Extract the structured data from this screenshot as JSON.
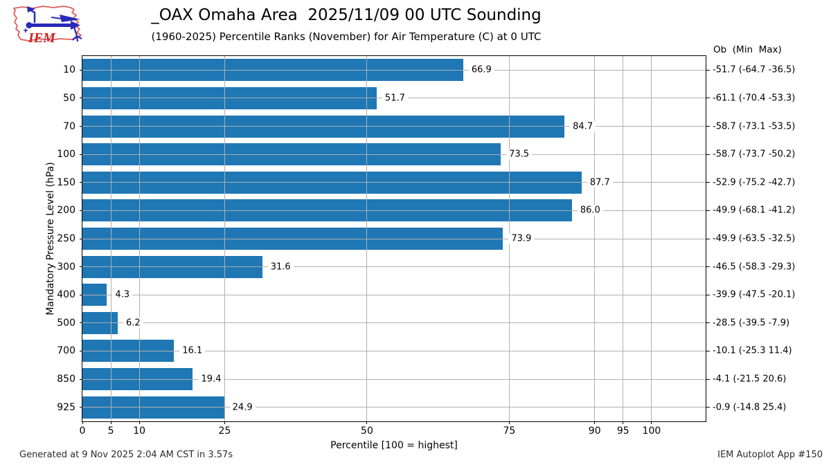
{
  "header": {
    "title": "_OAX Omaha Area  2025/11/09 00 UTC Sounding",
    "subtitle": "(1960-2025) Percentile Ranks (November) for Air Temperature (C) at 0 UTC",
    "logo_text": "IEM"
  },
  "chart_data": {
    "type": "bar",
    "orientation": "horizontal",
    "title": "_OAX Omaha Area  2025/11/09 00 UTC Sounding",
    "subtitle": "(1960-2025) Percentile Ranks (November) for Air Temperature (C) at 0 UTC",
    "xlabel": "Percentile [100 = highest]",
    "ylabel": "Mandatory Pressure Level (hPa)",
    "right_column_header": "Ob  (Min  Max)",
    "x_ticks": [
      0,
      5,
      10,
      25,
      50,
      75,
      90,
      95,
      100
    ],
    "xlim": [
      0,
      109.5
    ],
    "grid": true,
    "legend": "none",
    "bar_color": "#1f77b4",
    "grid_color": "#b0b0b0",
    "categories": [
      "10",
      "50",
      "70",
      "100",
      "150",
      "200",
      "250",
      "300",
      "400",
      "500",
      "700",
      "850",
      "925"
    ],
    "values": [
      66.9,
      51.7,
      84.7,
      73.5,
      87.7,
      86.0,
      73.9,
      31.6,
      4.3,
      6.2,
      16.1,
      19.4,
      24.9
    ],
    "ob_min_max": [
      "-51.7 (-64.7 -36.5)",
      "-61.1 (-70.4 -53.3)",
      "-58.7 (-73.1 -53.5)",
      "-58.7 (-73.7 -50.2)",
      "-52.9 (-75.2 -42.7)",
      "-49.9 (-68.1 -41.2)",
      "-49.9 (-63.5 -32.5)",
      "-46.5 (-58.3 -29.3)",
      "-39.9 (-47.5 -20.1)",
      "-28.5 (-39.5 -7.9)",
      "-10.1 (-25.3 11.4)",
      "-4.1 (-21.5 20.6)",
      "-0.9 (-14.8 25.4)"
    ]
  },
  "footer": {
    "left": "Generated at 9 Nov 2025 2:04 AM CST in 3.57s",
    "right": "IEM Autoplot App #150"
  }
}
